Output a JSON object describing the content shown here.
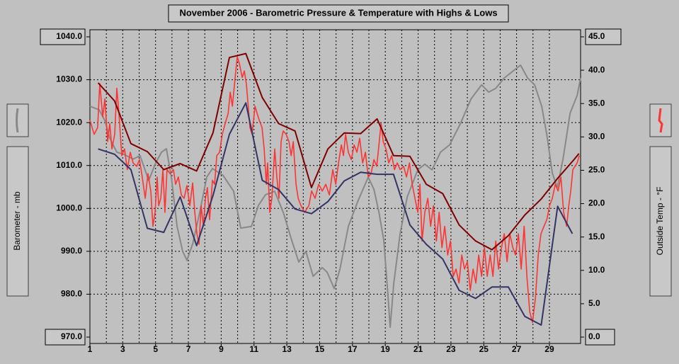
{
  "chart_data": {
    "type": "line",
    "title": "November 2006 - Barometric Pressure & Temperature with Highs & Lows",
    "ylabel": "Barometer - mb",
    "y2label": "Outside Temp - °F",
    "xlim": [
      1,
      30.9
    ],
    "xticks": [
      1,
      3,
      5,
      7,
      9,
      11,
      13,
      15,
      17,
      19,
      21,
      23,
      25,
      27,
      29
    ],
    "ylim": [
      970,
      1040
    ],
    "yticks": [
      {
        "value": 970,
        "label": "970.0"
      },
      {
        "value": 980,
        "label": "980.0"
      },
      {
        "value": 990,
        "label": "990.0"
      },
      {
        "value": 1000,
        "label": "1000.0"
      },
      {
        "value": 1010,
        "label": "1010.0"
      },
      {
        "value": 1020,
        "label": "1020.0"
      },
      {
        "value": 1030,
        "label": "1030.0"
      },
      {
        "value": 1040,
        "label": "1040.0"
      }
    ],
    "y2lim": [
      0,
      45
    ],
    "y2ticks": [
      {
        "value": 0,
        "label": "0.0"
      },
      {
        "value": 5,
        "label": "5.0"
      },
      {
        "value": 10,
        "label": "10.0"
      },
      {
        "value": 15,
        "label": "15.0"
      },
      {
        "value": 20,
        "label": "20.0"
      },
      {
        "value": 25,
        "label": "25.0"
      },
      {
        "value": 30,
        "label": "30.0"
      },
      {
        "value": 35,
        "label": "35.0"
      },
      {
        "value": 40,
        "label": "40.0"
      },
      {
        "value": 45,
        "label": "45.0"
      }
    ],
    "grid": true,
    "series": [
      {
        "color": "#888888",
        "x": [
          1.0,
          1.56,
          1.91,
          2.21,
          2.64,
          3.07,
          3.63,
          4.06,
          4.58,
          5.01,
          5.36,
          5.66,
          5.96,
          6.31,
          6.65,
          6.91,
          7.26,
          7.69,
          8.12,
          8.47,
          9.11,
          9.76,
          10.19,
          10.84,
          11.27,
          11.7,
          12.26,
          12.78,
          13.3,
          13.73,
          14.16,
          14.6,
          15.16,
          15.46,
          15.89,
          16.24,
          16.75,
          17.31,
          17.96,
          18.31,
          18.61,
          18.91,
          19.17,
          19.3,
          19.52,
          19.9,
          20.34,
          20.98,
          21.41,
          21.85,
          22.36,
          22.92,
          23.57,
          24.22,
          24.87,
          25.3,
          25.73,
          26.25,
          26.81,
          27.24,
          27.67,
          28.1,
          28.53,
          28.84,
          29.18,
          29.48,
          29.83,
          30.26,
          30.69,
          30.9
        ],
        "values": [
          1023.8,
          1023.0,
          1020.5,
          1016.4,
          1013.1,
          1012.6,
          1011.5,
          1012.3,
          1006.5,
          1010.6,
          1013.1,
          1013.9,
          1007.3,
          995.8,
          990.0,
          987.9,
          991.7,
          999.1,
          1007.3,
          1009.3,
          1007.7,
          1004.0,
          995.4,
          995.8,
          1000.7,
          1003.2,
          1004.0,
          999.1,
          992.5,
          987.5,
          990.0,
          984.2,
          986.2,
          985.1,
          981.3,
          985.9,
          995.8,
          1001.5,
          1007.3,
          1004.4,
          999.1,
          992.5,
          979.3,
          972.3,
          982.6,
          994.1,
          1002.7,
          1009.0,
          1010.3,
          1009.0,
          1013.1,
          1014.8,
          1019.7,
          1025.5,
          1028.8,
          1027.1,
          1028.0,
          1030.4,
          1032.1,
          1033.4,
          1030.4,
          1028.8,
          1023.8,
          1017.2,
          1008.2,
          1004.9,
          1011.5,
          1022.2,
          1026.3,
          1030.4
        ]
      },
      {
        "color": "#ff3333",
        "axis": "y2",
        "x": [
          1.0,
          1.26,
          1.47,
          1.6,
          1.78,
          1.91,
          2.08,
          2.21,
          2.34,
          2.51,
          2.64,
          2.77,
          2.94,
          3.11,
          3.28,
          3.46,
          3.63,
          3.85,
          4.02,
          4.19,
          4.37,
          4.54,
          4.71,
          4.84,
          4.97,
          5.1,
          5.19,
          5.32,
          5.45,
          5.57,
          5.7,
          5.88,
          6.09,
          6.22,
          6.39,
          6.57,
          6.74,
          6.91,
          7.09,
          7.26,
          7.39,
          7.52,
          7.65,
          7.78,
          7.91,
          8.04,
          8.16,
          8.29,
          8.47,
          8.6,
          8.73,
          8.9,
          9.07,
          9.24,
          9.42,
          9.55,
          9.68,
          9.85,
          9.98,
          10.11,
          10.28,
          10.41,
          10.54,
          10.63,
          10.75,
          10.88,
          11.06,
          11.19,
          11.32,
          11.49,
          11.62,
          11.75,
          11.83,
          11.96,
          12.09,
          12.26,
          12.39,
          12.52,
          12.65,
          12.78,
          12.96,
          13.13,
          13.26,
          13.39,
          13.56,
          13.69,
          13.86,
          14.08,
          14.34,
          14.51,
          14.72,
          14.94,
          15.16,
          15.37,
          15.59,
          15.8,
          15.98,
          16.15,
          16.32,
          16.45,
          16.58,
          16.75,
          16.93,
          17.1,
          17.27,
          17.44,
          17.62,
          17.79,
          17.96,
          18.13,
          18.31,
          18.48,
          18.61,
          18.74,
          18.87,
          19.04,
          19.21,
          19.39,
          19.56,
          19.73,
          19.9,
          20.12,
          20.29,
          20.47,
          20.64,
          20.81,
          20.98,
          21.11,
          21.24,
          21.41,
          21.59,
          21.76,
          21.93,
          22.11,
          22.28,
          22.45,
          22.62,
          22.8,
          22.97,
          23.14,
          23.31,
          23.49,
          23.66,
          23.83,
          24.0,
          24.18,
          24.35,
          24.52,
          24.69,
          24.87,
          25.04,
          25.21,
          25.39,
          25.56,
          25.73,
          25.9,
          26.08,
          26.25,
          26.42,
          26.59,
          26.77,
          26.94,
          27.11,
          27.28,
          27.46,
          27.63,
          27.8,
          27.97,
          28.15,
          28.32,
          28.49,
          28.67,
          28.84,
          29.01,
          29.18,
          29.36,
          29.53,
          29.7,
          29.87,
          30.05,
          30.18,
          30.3,
          30.43,
          30.56,
          30.69,
          30.82
        ],
        "values": [
          32.5,
          30.4,
          31.4,
          38.0,
          33.0,
          35.7,
          29.3,
          32.0,
          28.2,
          30.4,
          37.3,
          33.5,
          27.2,
          28.2,
          25.1,
          27.7,
          26.1,
          25.6,
          26.6,
          24.0,
          20.8,
          24.5,
          21.9,
          16.6,
          18.7,
          24.0,
          19.7,
          20.8,
          25.1,
          18.7,
          25.1,
          24.5,
          25.1,
          22.9,
          24.0,
          21.3,
          20.8,
          22.7,
          19.7,
          23.1,
          18.7,
          15.5,
          13.9,
          19.7,
          16.6,
          20.8,
          22.4,
          17.6,
          23.5,
          22.9,
          27.2,
          27.7,
          30.4,
          32.0,
          33.5,
          36.7,
          34.6,
          38.9,
          42.0,
          41.0,
          38.9,
          39.9,
          37.8,
          35.1,
          31.4,
          30.4,
          34.6,
          33.5,
          32.5,
          31.4,
          28.2,
          22.9,
          26.1,
          18.7,
          20.8,
          28.2,
          24.0,
          20.8,
          29.3,
          30.9,
          30.4,
          29.3,
          27.2,
          29.3,
          22.9,
          20.8,
          19.7,
          18.7,
          19.7,
          21.9,
          20.8,
          22.9,
          21.9,
          22.9,
          21.3,
          25.1,
          22.9,
          26.1,
          28.8,
          27.2,
          30.4,
          27.7,
          26.6,
          28.8,
          27.7,
          29.8,
          26.1,
          27.7,
          24.0,
          24.5,
          26.6,
          25.6,
          28.8,
          32.0,
          29.3,
          28.2,
          26.1,
          27.2,
          25.1,
          26.1,
          25.1,
          25.6,
          24.0,
          26.1,
          22.9,
          20.8,
          18.7,
          22.9,
          14.4,
          18.7,
          20.8,
          16.6,
          19.7,
          14.4,
          18.7,
          13.4,
          16.6,
          12.3,
          14.4,
          9.1,
          10.2,
          8.1,
          12.3,
          10.2,
          11.3,
          7.0,
          10.2,
          8.1,
          12.3,
          9.1,
          13.4,
          9.1,
          12.3,
          9.1,
          14.4,
          10.2,
          13.4,
          15.5,
          11.3,
          15.5,
          13.4,
          12.3,
          15.5,
          10.2,
          16.6,
          9.1,
          3.8,
          2.2,
          5.9,
          12.3,
          15.5,
          16.6,
          17.6,
          19.7,
          20.8,
          22.9,
          21.9,
          24.0,
          18.7,
          16.6,
          19.7,
          21.9,
          25.1,
          25.6,
          26.1,
          27.2
        ]
      },
      {
        "color": "#800000",
        "axis": "y2",
        "x": [
          1.5,
          2.5,
          3.5,
          4.5,
          5.5,
          6.5,
          7.5,
          8.5,
          9.5,
          10.5,
          11.5,
          12.5,
          13.5,
          14.5,
          15.5,
          16.5,
          17.5,
          18.5,
          19.5,
          20.5,
          21.5,
          22.5,
          23.5,
          24.5,
          25.5,
          26.5,
          27.5,
          28.5,
          29.5,
          30.5,
          30.8
        ],
        "values": [
          38.1,
          35.4,
          29.0,
          27.8,
          25.1,
          26.0,
          24.9,
          30.6,
          41.9,
          42.5,
          35.9,
          32.0,
          30.9,
          22.4,
          28.2,
          30.6,
          30.5,
          32.7,
          27.2,
          27.1,
          22.9,
          21.5,
          16.8,
          14.4,
          13.1,
          15.2,
          18.3,
          20.7,
          23.8,
          26.6,
          27.5
        ]
      },
      {
        "color": "#333366",
        "axis": "y2",
        "x": [
          1.5,
          2.5,
          3.5,
          4.5,
          5.5,
          6.5,
          7.5,
          8.5,
          9.5,
          10.5,
          11.5,
          12.5,
          13.5,
          14.5,
          15.5,
          16.5,
          17.5,
          18.5,
          19.5,
          20.5,
          21.5,
          22.5,
          23.5,
          24.5,
          25.5,
          26.5,
          27.5,
          28.5,
          29.5,
          30.4
        ],
        "values": [
          28.2,
          27.4,
          25.1,
          16.3,
          15.7,
          21.0,
          13.7,
          21.2,
          30.4,
          35.1,
          23.5,
          22.1,
          19.2,
          18.5,
          20.3,
          23.4,
          24.7,
          24.4,
          24.4,
          16.8,
          13.9,
          11.7,
          7.0,
          5.8,
          7.5,
          7.5,
          3.1,
          1.8,
          19.6,
          15.5
        ]
      }
    ]
  }
}
